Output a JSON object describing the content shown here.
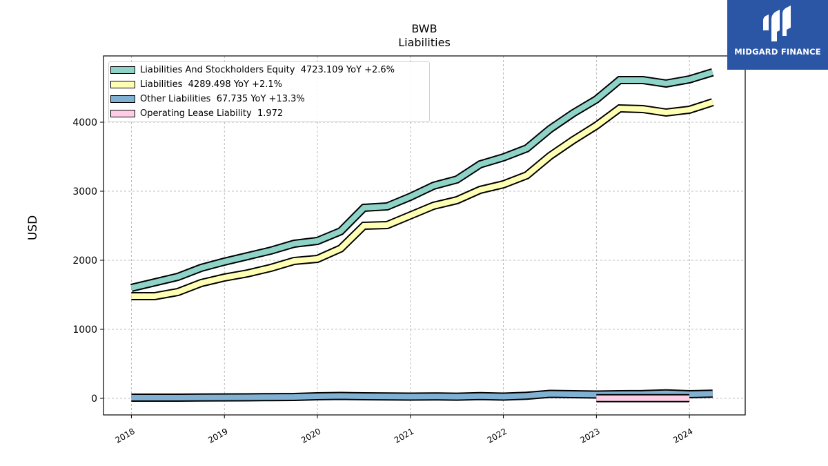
{
  "brand": {
    "name": "MIDGARD FINANCE",
    "color": "#2b55a5",
    "icon": "midgard-m-logo-icon"
  },
  "chart_data": {
    "type": "area",
    "title": "BWB",
    "subtitle": "Liabilities",
    "xlabel": "",
    "ylabel": "USD",
    "xlim": [
      2017.7,
      2024.6
    ],
    "ylim": [
      -240,
      4960
    ],
    "x_ticks": [
      "2018",
      "2019",
      "2020",
      "2021",
      "2022",
      "2023",
      "2024"
    ],
    "y_ticks": [
      0,
      1000,
      2000,
      3000,
      4000
    ],
    "grid": true,
    "legend_position": "upper-left",
    "series": [
      {
        "name": "Liabilities And Stockholders Equity",
        "legend_text": "Liabilities And Stockholders Equity  4723.109 YoY +2.6%",
        "color": "#8dd3c7",
        "x": [
          2018.0,
          2018.25,
          2018.5,
          2018.75,
          2019.0,
          2019.25,
          2019.5,
          2019.75,
          2020.0,
          2020.25,
          2020.5,
          2020.75,
          2021.0,
          2021.25,
          2021.5,
          2021.75,
          2022.0,
          2022.25,
          2022.5,
          2022.75,
          2023.0,
          2023.25,
          2023.5,
          2023.75,
          2024.0,
          2024.25
        ],
        "values": [
          1600,
          1680,
          1760,
          1890,
          1980,
          2060,
          2140,
          2240,
          2280,
          2420,
          2760,
          2780,
          2920,
          3080,
          3170,
          3390,
          3490,
          3620,
          3900,
          4130,
          4330,
          4610,
          4610,
          4560,
          4620,
          4723
        ]
      },
      {
        "name": "Liabilities",
        "legend_text": "Liabilities  4289.498 YoY +2.1%",
        "color": "#ffffb3",
        "x": [
          2018.0,
          2018.25,
          2018.5,
          2018.75,
          2019.0,
          2019.25,
          2019.5,
          2019.75,
          2020.0,
          2020.25,
          2020.5,
          2020.75,
          2021.0,
          2021.25,
          2021.5,
          2021.75,
          2022.0,
          2022.25,
          2022.5,
          2022.75,
          2023.0,
          2023.25,
          2023.5,
          2023.75,
          2024.0,
          2024.25
        ],
        "values": [
          1480,
          1480,
          1540,
          1670,
          1750,
          1810,
          1890,
          1990,
          2020,
          2170,
          2500,
          2510,
          2650,
          2790,
          2870,
          3020,
          3100,
          3230,
          3510,
          3740,
          3950,
          4200,
          4190,
          4140,
          4180,
          4289
        ]
      },
      {
        "name": "Other Liabilities",
        "legend_text": "Other Liabilities  67.735 YoY +13.3%",
        "color": "#80b1d3",
        "x": [
          2018.0,
          2018.25,
          2018.5,
          2018.75,
          2019.0,
          2019.25,
          2019.5,
          2019.75,
          2020.0,
          2020.25,
          2020.5,
          2020.75,
          2021.0,
          2021.25,
          2021.5,
          2021.75,
          2022.0,
          2022.25,
          2022.5,
          2022.75,
          2023.0,
          2023.25,
          2023.5,
          2023.75,
          2024.0,
          2024.25
        ],
        "values": [
          10,
          10,
          10,
          12,
          14,
          15,
          18,
          20,
          30,
          35,
          30,
          28,
          25,
          28,
          24,
          32,
          25,
          38,
          65,
          60,
          55,
          60,
          62,
          72,
          60,
          68
        ]
      },
      {
        "name": "Operating Lease Liability",
        "legend_text": "Operating Lease Liability  1.972",
        "color": "#fccde5",
        "x": [
          2023.0,
          2023.25,
          2023.5,
          2023.75,
          2024.0
        ],
        "values": [
          2,
          2,
          2,
          2,
          2
        ]
      }
    ]
  }
}
